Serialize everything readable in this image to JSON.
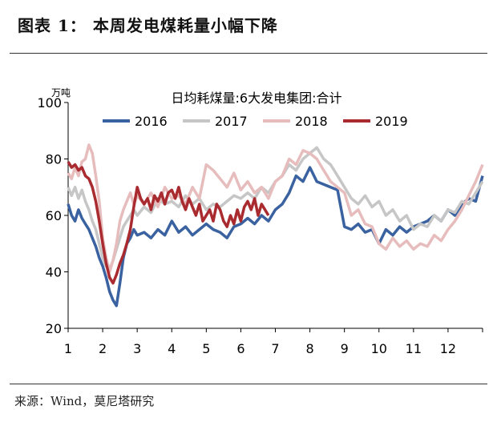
{
  "figure": {
    "title": "图表 1： 本周发电煤耗量小幅下降",
    "source": "来源：Wind，莫尼塔研究"
  },
  "chart_data": {
    "type": "line",
    "title": "日均耗煤量:6大发电集团:合计",
    "ylabel": "万吨",
    "ylim": [
      20,
      100
    ],
    "yticks": [
      20,
      40,
      60,
      80,
      100
    ],
    "xlim": [
      1,
      13
    ],
    "xticks": [
      "1",
      "2",
      "3",
      "4",
      "5",
      "6",
      "7",
      "8",
      "9",
      "10",
      "11",
      "12"
    ],
    "grid": false,
    "legend": "top",
    "series": [
      {
        "name": "2016",
        "color": "#3b62a0",
        "x": [
          1.0,
          1.1,
          1.2,
          1.3,
          1.4,
          1.5,
          1.6,
          1.7,
          1.8,
          1.9,
          2.0,
          2.1,
          2.2,
          2.3,
          2.4,
          2.5,
          2.6,
          2.7,
          2.8,
          2.9,
          3.0,
          3.2,
          3.4,
          3.6,
          3.8,
          4.0,
          4.2,
          4.4,
          4.6,
          4.8,
          5.0,
          5.2,
          5.4,
          5.6,
          5.8,
          6.0,
          6.2,
          6.4,
          6.6,
          6.8,
          7.0,
          7.2,
          7.4,
          7.6,
          7.8,
          8.0,
          8.2,
          8.4,
          8.6,
          8.8,
          9.0,
          9.2,
          9.4,
          9.6,
          9.8,
          10.0,
          10.2,
          10.4,
          10.6,
          10.8,
          11.0,
          11.2,
          11.4,
          11.6,
          11.8,
          12.0,
          12.2,
          12.4,
          12.6,
          12.8,
          13.0
        ],
        "values": [
          64,
          60,
          58,
          62,
          59,
          57,
          55,
          52,
          49,
          45,
          42,
          38,
          33,
          30,
          28,
          36,
          45,
          50,
          52,
          55,
          53,
          54,
          52,
          55,
          53,
          58,
          54,
          56,
          53,
          55,
          57,
          55,
          54,
          52,
          56,
          57,
          59,
          57,
          60,
          58,
          62,
          64,
          68,
          74,
          72,
          77,
          72,
          71,
          70,
          69,
          56,
          55,
          57,
          54,
          55,
          50,
          55,
          53,
          56,
          54,
          56,
          57,
          58,
          60,
          58,
          62,
          60,
          64,
          66,
          65,
          74
        ]
      },
      {
        "name": "2017",
        "color": "#c6c6c6",
        "x": [
          1.0,
          1.1,
          1.2,
          1.3,
          1.4,
          1.5,
          1.6,
          1.7,
          1.8,
          1.9,
          2.0,
          2.1,
          2.2,
          2.3,
          2.4,
          2.5,
          2.6,
          2.7,
          2.8,
          2.9,
          3.0,
          3.2,
          3.4,
          3.6,
          3.8,
          4.0,
          4.2,
          4.4,
          4.6,
          4.8,
          5.0,
          5.2,
          5.4,
          5.6,
          5.8,
          6.0,
          6.2,
          6.4,
          6.6,
          6.8,
          7.0,
          7.2,
          7.4,
          7.6,
          7.8,
          8.0,
          8.2,
          8.4,
          8.6,
          8.8,
          9.0,
          9.2,
          9.4,
          9.6,
          9.8,
          10.0,
          10.2,
          10.4,
          10.6,
          10.8,
          11.0,
          11.2,
          11.4,
          11.6,
          11.8,
          12.0,
          12.2,
          12.4,
          12.6,
          12.8,
          13.0
        ],
        "values": [
          70,
          67,
          70,
          66,
          69,
          65,
          62,
          58,
          55,
          50,
          45,
          42,
          41,
          44,
          48,
          52,
          56,
          58,
          60,
          62,
          60,
          63,
          61,
          66,
          64,
          65,
          63,
          67,
          64,
          66,
          62,
          64,
          63,
          65,
          67,
          66,
          68,
          66,
          70,
          68,
          72,
          74,
          78,
          76,
          80,
          82,
          84,
          80,
          78,
          74,
          70,
          66,
          64,
          67,
          63,
          65,
          60,
          62,
          58,
          60,
          55,
          57,
          56,
          60,
          58,
          62,
          61,
          65,
          64,
          68,
          72
        ]
      },
      {
        "name": "2018",
        "color": "#e6bcbc",
        "x": [
          1.0,
          1.1,
          1.2,
          1.3,
          1.4,
          1.5,
          1.6,
          1.7,
          1.8,
          1.9,
          2.0,
          2.1,
          2.2,
          2.3,
          2.4,
          2.5,
          2.6,
          2.7,
          2.8,
          2.9,
          3.0,
          3.2,
          3.4,
          3.6,
          3.8,
          4.0,
          4.2,
          4.4,
          4.6,
          4.8,
          5.0,
          5.2,
          5.4,
          5.6,
          5.8,
          6.0,
          6.2,
          6.4,
          6.6,
          6.8,
          7.0,
          7.2,
          7.4,
          7.6,
          7.8,
          8.0,
          8.2,
          8.4,
          8.6,
          8.8,
          9.0,
          9.2,
          9.4,
          9.6,
          9.8,
          10.0,
          10.2,
          10.4,
          10.6,
          10.8,
          11.0,
          11.2,
          11.4,
          11.6,
          11.8,
          12.0,
          12.2,
          12.4,
          12.6,
          12.8,
          13.0
        ],
        "values": [
          75,
          73,
          77,
          74,
          79,
          80,
          85,
          82,
          74,
          65,
          52,
          45,
          40,
          44,
          50,
          58,
          62,
          65,
          68,
          64,
          67,
          64,
          68,
          63,
          70,
          66,
          67,
          64,
          70,
          66,
          78,
          76,
          73,
          70,
          75,
          69,
          72,
          68,
          70,
          66,
          72,
          74,
          80,
          78,
          83,
          82,
          80,
          76,
          72,
          70,
          68,
          60,
          62,
          57,
          56,
          50,
          48,
          52,
          49,
          51,
          48,
          50,
          49,
          53,
          51,
          55,
          58,
          62,
          67,
          72,
          78
        ]
      },
      {
        "name": "2019",
        "color": "#a92b2f",
        "x": [
          1.0,
          1.1,
          1.2,
          1.3,
          1.4,
          1.5,
          1.6,
          1.7,
          1.8,
          1.9,
          2.0,
          2.1,
          2.2,
          2.3,
          2.4,
          2.5,
          2.6,
          2.7,
          2.8,
          2.9,
          3.0,
          3.1,
          3.2,
          3.3,
          3.4,
          3.5,
          3.6,
          3.7,
          3.8,
          3.9,
          4.0,
          4.1,
          4.2,
          4.3,
          4.4,
          4.5,
          4.6,
          4.7,
          4.8,
          4.9,
          5.0,
          5.1,
          5.2,
          5.3,
          5.4,
          5.5,
          5.6,
          5.7,
          5.8,
          5.9,
          6.0,
          6.1,
          6.2,
          6.3,
          6.4,
          6.5,
          6.6,
          6.7,
          6.8
        ],
        "values": [
          79,
          77,
          78,
          76,
          77,
          74,
          73,
          70,
          65,
          58,
          50,
          43,
          38,
          36,
          39,
          43,
          46,
          50,
          55,
          63,
          70,
          66,
          64,
          66,
          62,
          67,
          65,
          68,
          64,
          68,
          69,
          66,
          70,
          65,
          62,
          66,
          63,
          60,
          64,
          58,
          60,
          62,
          58,
          64,
          62,
          58,
          56,
          60,
          57,
          62,
          58,
          63,
          65,
          62,
          66,
          60,
          64,
          62,
          60
        ]
      }
    ]
  }
}
